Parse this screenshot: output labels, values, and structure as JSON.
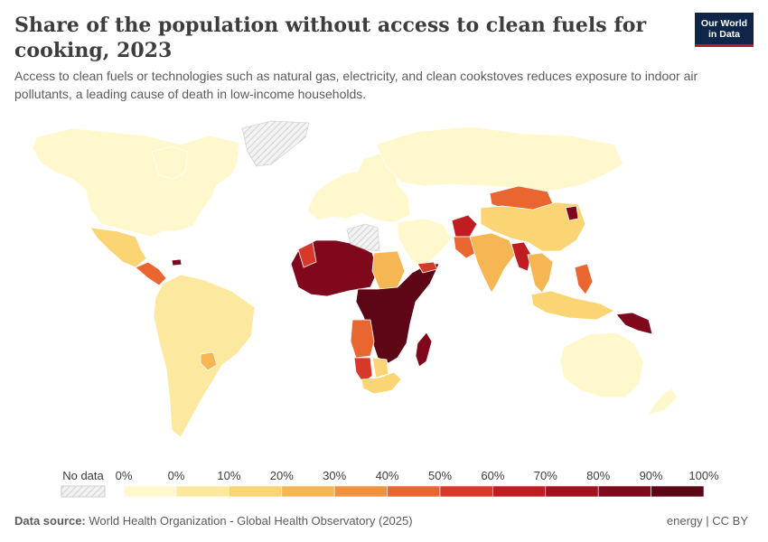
{
  "header": {
    "title": "Share of the population without access to clean fuels for cooking, 2023",
    "subtitle": "Access to clean fuels or technologies such as natural gas, electricity, and clean cookstoves reduces exposure to indoor air pollutants, a leading cause of death in low-income households.",
    "logo_line1": "Our World",
    "logo_line2": "in Data"
  },
  "legend": {
    "no_data_label": "No data",
    "tick_labels": [
      "0%",
      "0%",
      "10%",
      "20%",
      "30%",
      "40%",
      "50%",
      "60%",
      "70%",
      "80%",
      "90%",
      "100%"
    ],
    "colors": [
      "#fff8cc",
      "#fde8a0",
      "#fbd474",
      "#f6b653",
      "#f2913e",
      "#ea6630",
      "#d8382a",
      "#c01d22",
      "#a2111f",
      "#80081c",
      "#5d0616"
    ],
    "no_data_color": "#e9e9e9"
  },
  "footer": {
    "source_label": "Data source:",
    "source_text": "World Health Organization - Global Health Observatory (2025)",
    "license": "energy | CC BY"
  },
  "map": {
    "regions": [
      {
        "name": "north-america",
        "value_pct": 0,
        "color": "#fff8cc"
      },
      {
        "name": "greenland",
        "value_pct": null,
        "color": "no-data"
      },
      {
        "name": "mexico",
        "value_pct": 12,
        "color": "#fbd474"
      },
      {
        "name": "central-america",
        "value_pct": 45,
        "color": "#ea6630"
      },
      {
        "name": "haiti",
        "value_pct": 90,
        "color": "#80081c"
      },
      {
        "name": "south-america",
        "value_pct": 8,
        "color": "#fde8a0"
      },
      {
        "name": "paraguay",
        "value_pct": 30,
        "color": "#f6b653"
      },
      {
        "name": "europe",
        "value_pct": 0,
        "color": "#fff8cc"
      },
      {
        "name": "russia",
        "value_pct": 0,
        "color": "#fff8cc"
      },
      {
        "name": "west-africa",
        "value_pct": 90,
        "color": "#80081c"
      },
      {
        "name": "mauritania",
        "value_pct": 50,
        "color": "#d8382a"
      },
      {
        "name": "libya",
        "value_pct": null,
        "color": "no-data"
      },
      {
        "name": "sudan",
        "value_pct": 35,
        "color": "#f6b653"
      },
      {
        "name": "central-east-africa",
        "value_pct": 95,
        "color": "#5d0616"
      },
      {
        "name": "angola",
        "value_pct": 50,
        "color": "#ea6630"
      },
      {
        "name": "namibia",
        "value_pct": 55,
        "color": "#d8382a"
      },
      {
        "name": "botswana",
        "value_pct": 12,
        "color": "#fbd474"
      },
      {
        "name": "south-africa",
        "value_pct": 10,
        "color": "#fbd474"
      },
      {
        "name": "madagascar",
        "value_pct": 99,
        "color": "#80081c"
      },
      {
        "name": "middle-east",
        "value_pct": 0,
        "color": "#fff8cc"
      },
      {
        "name": "yemen",
        "value_pct": 60,
        "color": "#d8382a"
      },
      {
        "name": "afghanistan",
        "value_pct": 65,
        "color": "#c01d22"
      },
      {
        "name": "pakistan",
        "value_pct": 45,
        "color": "#ea6630"
      },
      {
        "name": "india",
        "value_pct": 35,
        "color": "#f6b653"
      },
      {
        "name": "myanmar",
        "value_pct": 70,
        "color": "#c01d22"
      },
      {
        "name": "mongolia",
        "value_pct": 50,
        "color": "#ea6630"
      },
      {
        "name": "china",
        "value_pct": 20,
        "color": "#fbd474"
      },
      {
        "name": "north-korea",
        "value_pct": 90,
        "color": "#80081c"
      },
      {
        "name": "southeast-asia",
        "value_pct": 30,
        "color": "#f6b653"
      },
      {
        "name": "philippines",
        "value_pct": 55,
        "color": "#ea6630"
      },
      {
        "name": "indonesia",
        "value_pct": 10,
        "color": "#fbd474"
      },
      {
        "name": "papua-new-guinea",
        "value_pct": 95,
        "color": "#80081c"
      },
      {
        "name": "australia",
        "value_pct": 0,
        "color": "#fff8cc"
      },
      {
        "name": "new-zealand",
        "value_pct": 0,
        "color": "#fff8cc"
      }
    ]
  }
}
